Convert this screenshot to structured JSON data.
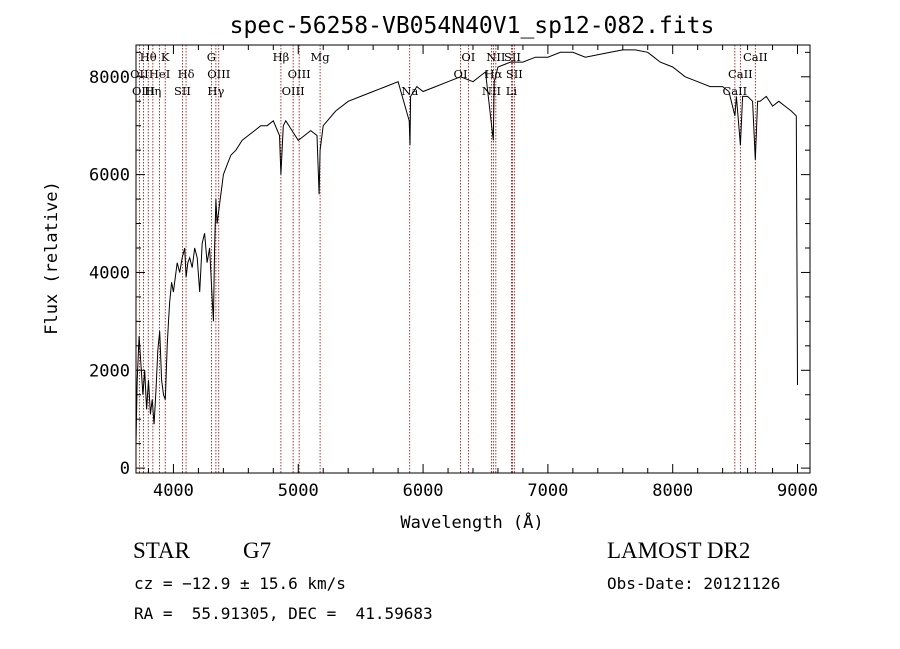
{
  "chart_data": {
    "type": "line",
    "title": "spec-56258-VB054N40V1_sp12-082.fits",
    "xlabel": "Wavelength (Å)",
    "ylabel": "Flux (relative)",
    "xlim": [
      3700,
      9100
    ],
    "ylim": [
      -100,
      8650
    ],
    "xticks": [
      4000,
      5000,
      6000,
      7000,
      8000,
      9000
    ],
    "yticks": [
      0,
      2000,
      4000,
      6000,
      8000
    ],
    "grid": false,
    "line_color": "#000000",
    "marker_color": "#a00000",
    "series": [
      {
        "x": [
          3700,
          3710,
          3725,
          3740,
          3755,
          3770,
          3785,
          3800,
          3815,
          3830,
          3845,
          3860,
          3875,
          3890,
          3905,
          3920,
          3935,
          3950,
          3960,
          3970,
          3985,
          4000,
          4015,
          4030,
          4050,
          4070,
          4090,
          4101,
          4115,
          4130,
          4150,
          4170,
          4190,
          4210,
          4230,
          4250,
          4270,
          4290,
          4310,
          4320,
          4330,
          4340,
          4350,
          4370,
          4400,
          4430,
          4460,
          4500,
          4550,
          4600,
          4650,
          4700,
          4750,
          4800,
          4850,
          4861,
          4880,
          4900,
          4950,
          5000,
          5050,
          5100,
          5150,
          5167,
          5175,
          5200,
          5300,
          5400,
          5500,
          5600,
          5700,
          5800,
          5889,
          5895,
          5900,
          5950,
          6000,
          6100,
          6200,
          6300,
          6400,
          6500,
          6563,
          6570,
          6600,
          6700,
          6800,
          6900,
          7000,
          7100,
          7200,
          7300,
          7400,
          7500,
          7600,
          7700,
          7800,
          7850,
          7900,
          8000,
          8100,
          8200,
          8300,
          8400,
          8450,
          8498,
          8510,
          8542,
          8560,
          8600,
          8640,
          8662,
          8680,
          8700,
          8750,
          8800,
          8850,
          8900,
          8950,
          8990,
          9000
        ],
        "y": [
          500,
          1800,
          2700,
          2100,
          1500,
          2000,
          1200,
          1800,
          1100,
          1400,
          900,
          1600,
          2400,
          2800,
          1800,
          1500,
          1400,
          2500,
          3000,
          3400,
          3800,
          3600,
          3900,
          4200,
          4000,
          4300,
          4500,
          3900,
          4200,
          4300,
          4100,
          4500,
          4300,
          3600,
          4600,
          4800,
          4200,
          4500,
          3500,
          3000,
          4500,
          5500,
          5000,
          5400,
          6000,
          6200,
          6400,
          6500,
          6700,
          6800,
          6900,
          7000,
          7000,
          7100,
          6800,
          6000,
          7000,
          7100,
          6900,
          6700,
          6800,
          6900,
          6800,
          5600,
          6500,
          7000,
          7300,
          7500,
          7600,
          7700,
          7800,
          7900,
          7100,
          6600,
          7600,
          7800,
          7700,
          7800,
          7900,
          8000,
          7900,
          8100,
          6700,
          7900,
          8200,
          8300,
          8300,
          8400,
          8400,
          8500,
          8500,
          8400,
          8450,
          8500,
          8550,
          8550,
          8500,
          8400,
          8300,
          8200,
          8000,
          7900,
          7800,
          7800,
          7700,
          7200,
          7600,
          6600,
          7600,
          7600,
          7500,
          6300,
          7500,
          7500,
          7600,
          7400,
          7500,
          7400,
          7300,
          7200,
          1700
        ]
      }
    ],
    "spectral_lines": [
      {
        "name": "Hθ",
        "wave": 3798,
        "row": 1
      },
      {
        "name": "OII",
        "wave": 3727,
        "row": 2
      },
      {
        "name": "OIII",
        "wave": 3760,
        "row": 3
      },
      {
        "name": "Hη",
        "wave": 3835,
        "row": 3
      },
      {
        "name": "HeI",
        "wave": 3889,
        "row": 2
      },
      {
        "name": "K",
        "wave": 3934,
        "row": 1
      },
      {
        "name": "Hδ",
        "wave": 4101,
        "row": 2
      },
      {
        "name": "SII",
        "wave": 4072,
        "row": 3
      },
      {
        "name": "G",
        "wave": 4304,
        "row": 1
      },
      {
        "name": "OIII",
        "wave": 4363,
        "row": 2
      },
      {
        "name": "Hγ",
        "wave": 4340,
        "row": 3
      },
      {
        "name": "Hβ",
        "wave": 4861,
        "row": 1
      },
      {
        "name": "OIII",
        "wave": 4959,
        "row": 3
      },
      {
        "name": "OIII",
        "wave": 5007,
        "row": 2
      },
      {
        "name": "Mg",
        "wave": 5175,
        "row": 1
      },
      {
        "name": "Na",
        "wave": 5893,
        "row": 3
      },
      {
        "name": "OI",
        "wave": 6300,
        "row": 2
      },
      {
        "name": "OI",
        "wave": 6363,
        "row": 1
      },
      {
        "name": "NII",
        "wave": 6548,
        "row": 3
      },
      {
        "name": "Hα",
        "wave": 6563,
        "row": 2
      },
      {
        "name": "NII",
        "wave": 6583,
        "row": 1
      },
      {
        "name": "Li",
        "wave": 6708,
        "row": 3
      },
      {
        "name": "SII",
        "wave": 6716,
        "row": 1
      },
      {
        "name": "SII",
        "wave": 6731,
        "row": 2
      },
      {
        "name": "CaII",
        "wave": 8498,
        "row": 3
      },
      {
        "name": "CaII",
        "wave": 8542,
        "row": 2
      },
      {
        "name": "CaII",
        "wave": 8662,
        "row": 1
      }
    ]
  },
  "info": {
    "object_class": "STAR",
    "subclass": "G7",
    "survey": "LAMOST DR2",
    "redshift": "cz = −12.9 ± 15.6 km/s",
    "obs_date": "Obs-Date: 20121126",
    "coords": "RA =  55.91305, DEC =  41.59683"
  }
}
